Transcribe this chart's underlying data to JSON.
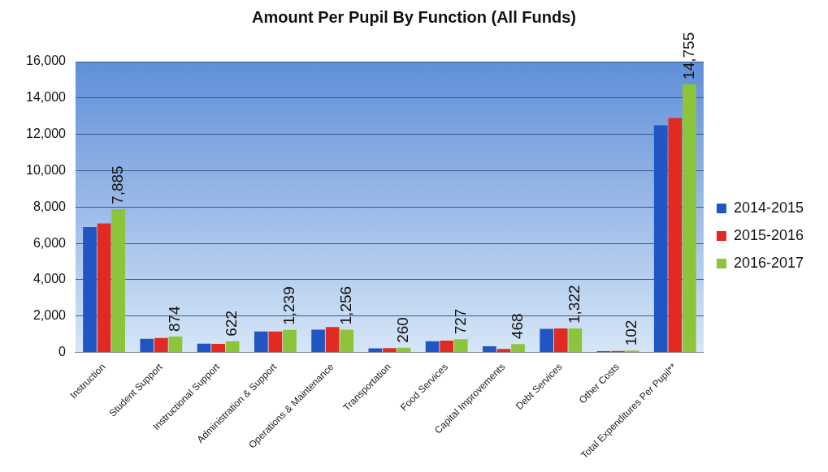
{
  "chart_data": {
    "type": "bar",
    "title": "Amount Per Pupil By Function (All Funds)",
    "categories": [
      "Instruction",
      "Student Support",
      "Instructional Support",
      "Administration & Support",
      "Operations & Maintenance",
      "Transportation",
      "Food Services",
      "Capital Improvements",
      "Debt Services",
      "Other Costs",
      "Total Expenditures Per Pupil**"
    ],
    "series": [
      {
        "name": "2014-2015",
        "color": "#2255c4",
        "values": [
          6900,
          750,
          480,
          1150,
          1250,
          230,
          620,
          340,
          1300,
          70,
          12500
        ]
      },
      {
        "name": "2015-2016",
        "color": "#e02a22",
        "values": [
          7100,
          800,
          470,
          1150,
          1400,
          240,
          650,
          200,
          1320,
          80,
          12900
        ]
      },
      {
        "name": "2016-2017",
        "color": "#8cc43c",
        "values": [
          7885,
          874,
          622,
          1239,
          1256,
          260,
          727,
          468,
          1322,
          102,
          14755
        ],
        "value_labels": [
          "7,885",
          "874",
          "622",
          "1,239",
          "1,256",
          "260",
          "727",
          "468",
          "1,322",
          "102",
          "14,755"
        ]
      }
    ],
    "ylim": [
      0,
      16000
    ],
    "yticks": [
      {
        "value": 0,
        "label": "0"
      },
      {
        "value": 2000,
        "label": "2,000"
      },
      {
        "value": 4000,
        "label": "4,000"
      },
      {
        "value": 6000,
        "label": "6,000"
      },
      {
        "value": 8000,
        "label": "8,000"
      },
      {
        "value": 10000,
        "label": "10,000"
      },
      {
        "value": 12000,
        "label": "12,000"
      },
      {
        "value": 14000,
        "label": "14,000"
      },
      {
        "value": 16000,
        "label": "16,000"
      }
    ],
    "grid": "y",
    "legend": "right"
  }
}
